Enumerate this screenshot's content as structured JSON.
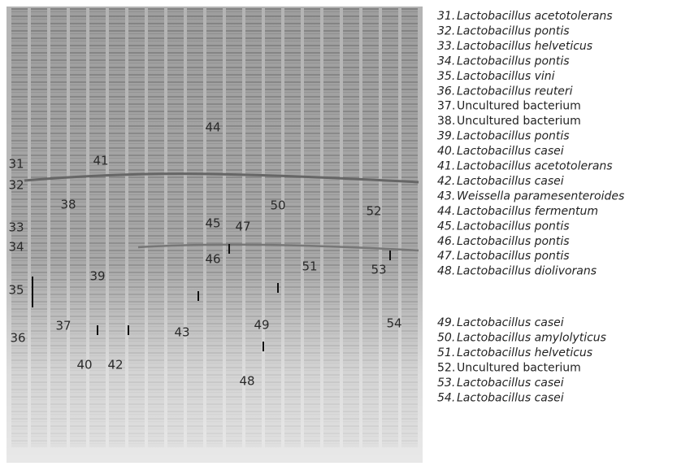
{
  "gel": {
    "labels": [
      "31",
      "32",
      "33",
      "34",
      "35",
      "36",
      "37",
      "38",
      "39",
      "40",
      "41",
      "42",
      "43",
      "44",
      "45",
      "46",
      "47",
      "48",
      "49",
      "50",
      "51",
      "52",
      "53",
      "54"
    ]
  },
  "legend": {
    "entries": [
      {
        "number": "31.",
        "name": "Lactobacillus acetotolerans",
        "italic": true
      },
      {
        "number": "32.",
        "name": "Lactobacillus pontis",
        "italic": true
      },
      {
        "number": "33.",
        "name": "Lactobacillus helveticus",
        "italic": true
      },
      {
        "number": "34.",
        "name": "Lactobacillus pontis",
        "italic": true
      },
      {
        "number": "35.",
        "name": "Lactobacillus vini",
        "italic": true
      },
      {
        "number": "36.",
        "name": "Lactobacillus reuteri",
        "italic": true
      },
      {
        "number": "37.",
        "name": "Uncultured  bacterium",
        "italic": false
      },
      {
        "number": "38.",
        "name": "Uncultured  bacterium",
        "italic": false
      },
      {
        "number": "39.",
        "name": "Lactobacillus pontis",
        "italic": true
      },
      {
        "number": "40.",
        "name": "Lactobacillus casei",
        "italic": true
      },
      {
        "number": "41.",
        "name": "Lactobacillus acetotolerans",
        "italic": true
      },
      {
        "number": "42.",
        "name": "Lactobacillus casei",
        "italic": true
      },
      {
        "number": "43.",
        "name": "Weissella paramesenteroides",
        "italic": true
      },
      {
        "number": "44.",
        "name": "Lactobacillus fermentum",
        "italic": true
      },
      {
        "number": "45.",
        "name": "Lactobacillus pontis",
        "italic": true
      },
      {
        "number": "46.",
        "name": "Lactobacillus pontis",
        "italic": true
      },
      {
        "number": "47.",
        "name": "Lactobacillus pontis",
        "italic": true
      },
      {
        "number": "48.",
        "name": "Lactobacillus diolivorans",
        "italic": true
      },
      {
        "number": "49.",
        "name": "Lactobacillus casei",
        "italic": true
      },
      {
        "number": "50.",
        "name": "Lactobacillus amylolyticus",
        "italic": true
      },
      {
        "number": "51.",
        "name": "Lactobacillus helveticus",
        "italic": true
      },
      {
        "number": "52.",
        "name": "Uncultured bacterium",
        "italic": false
      },
      {
        "number": "53.",
        "name": "Lactobacillus casei",
        "italic": true
      },
      {
        "number": "54.",
        "name": "Lactobacillus casei",
        "italic": true
      }
    ]
  }
}
